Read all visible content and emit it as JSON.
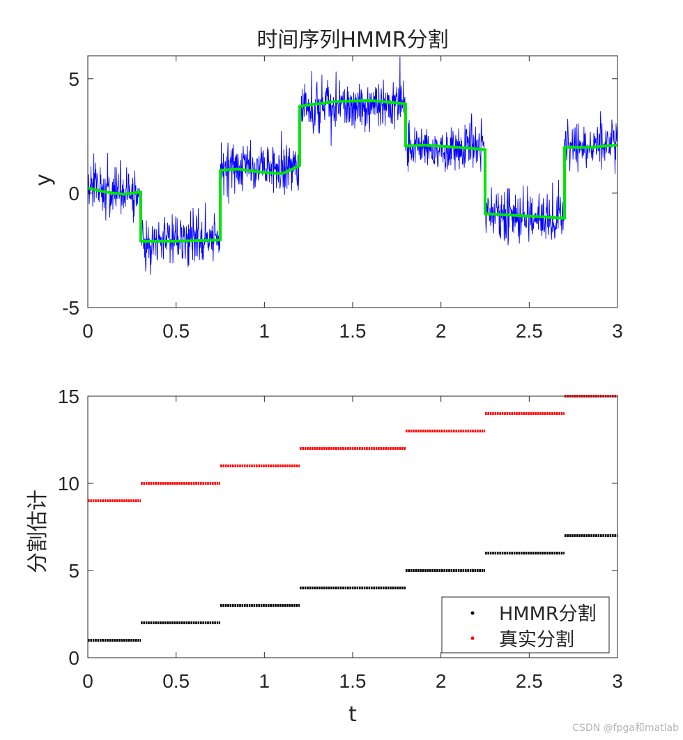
{
  "watermark": "CSDN @fpga和matlab",
  "chart_data": [
    {
      "type": "line",
      "title": "时间序列HMMR分割",
      "xlabel": "",
      "ylabel": "y",
      "xlim": [
        0,
        3
      ],
      "ylim": [
        -5,
        6
      ],
      "xticks": [
        0,
        0.5,
        1,
        1.5,
        2,
        2.5,
        3
      ],
      "xtick_labels": [
        "0",
        "0.5",
        "1",
        "1.5",
        "2",
        "2.5",
        "3"
      ],
      "yticks": [
        -5,
        0,
        5
      ],
      "ytick_labels": [
        "-5",
        "0",
        "5"
      ],
      "grid": false,
      "series": [
        {
          "name": "",
          "color": "#0000ff",
          "style": "noisy-raw",
          "noise_std": 0.55,
          "segments": [
            {
              "x": [
                0,
                0.3
              ],
              "y": [
                0.25,
                0.0
              ]
            },
            {
              "x": [
                0.3,
                0.75
              ],
              "y": [
                -2.1,
                -2.05
              ]
            },
            {
              "x": [
                0.75,
                1.2
              ],
              "y": [
                1.0,
                1.2
              ]
            },
            {
              "x": [
                1.2,
                1.8
              ],
              "y": [
                3.8,
                3.9
              ]
            },
            {
              "x": [
                1.8,
                2.25
              ],
              "y": [
                2.0,
                1.9
              ]
            },
            {
              "x": [
                2.25,
                2.7
              ],
              "y": [
                -0.9,
                -1.1
              ]
            },
            {
              "x": [
                2.7,
                3.0
              ],
              "y": [
                2.0,
                2.1
              ]
            }
          ]
        },
        {
          "name": "",
          "color": "#00e600",
          "style": "smooth-fit",
          "segments": [
            {
              "x": [
                0,
                0.1,
                0.2,
                0.3
              ],
              "y": [
                0.22,
                0.05,
                -0.05,
                0.05
              ]
            },
            {
              "x": [
                0.3,
                0.5,
                0.75
              ],
              "y": [
                -2.1,
                -2.1,
                -2.05
              ]
            },
            {
              "x": [
                0.75,
                0.85,
                1.0,
                1.1,
                1.2
              ],
              "y": [
                1.0,
                1.05,
                0.9,
                0.85,
                1.2
              ]
            },
            {
              "x": [
                1.2,
                1.4,
                1.6,
                1.8
              ],
              "y": [
                3.8,
                4.0,
                4.05,
                3.9
              ]
            },
            {
              "x": [
                1.8,
                1.9,
                2.1,
                2.25
              ],
              "y": [
                2.05,
                2.1,
                2.0,
                1.9
              ]
            },
            {
              "x": [
                2.25,
                2.5,
                2.7
              ],
              "y": [
                -0.9,
                -1.0,
                -1.1
              ]
            },
            {
              "x": [
                2.7,
                2.85,
                3.0
              ],
              "y": [
                2.0,
                2.0,
                2.1
              ]
            }
          ]
        }
      ]
    },
    {
      "type": "scatter",
      "title": "",
      "xlabel": "t",
      "ylabel": "分割估计",
      "xlim": [
        0,
        3
      ],
      "ylim": [
        0,
        15
      ],
      "xticks": [
        0,
        0.5,
        1,
        1.5,
        2,
        2.5,
        3
      ],
      "xtick_labels": [
        "0",
        "0.5",
        "1",
        "1.5",
        "2",
        "2.5",
        "3"
      ],
      "yticks": [
        0,
        5,
        10,
        15
      ],
      "ytick_labels": [
        "0",
        "5",
        "10",
        "15"
      ],
      "grid": false,
      "legend_position": "bottom-right",
      "series": [
        {
          "name": "HMMR分割",
          "color": "#000000",
          "steps": [
            {
              "x": [
                0,
                0.3
              ],
              "y": 1
            },
            {
              "x": [
                0.3,
                0.75
              ],
              "y": 2
            },
            {
              "x": [
                0.75,
                1.2
              ],
              "y": 3
            },
            {
              "x": [
                1.2,
                1.8
              ],
              "y": 4
            },
            {
              "x": [
                1.8,
                2.25
              ],
              "y": 5
            },
            {
              "x": [
                2.25,
                2.7
              ],
              "y": 6
            },
            {
              "x": [
                2.7,
                3.0
              ],
              "y": 7
            }
          ]
        },
        {
          "name": "真实分割",
          "color": "#ff0000",
          "steps": [
            {
              "x": [
                0,
                0.3
              ],
              "y": 9
            },
            {
              "x": [
                0.3,
                0.75
              ],
              "y": 10
            },
            {
              "x": [
                0.75,
                1.2
              ],
              "y": 11
            },
            {
              "x": [
                1.2,
                1.8
              ],
              "y": 12
            },
            {
              "x": [
                1.8,
                2.25
              ],
              "y": 13
            },
            {
              "x": [
                2.25,
                2.7
              ],
              "y": 14
            },
            {
              "x": [
                2.7,
                3.0
              ],
              "y": 15
            }
          ]
        }
      ]
    }
  ]
}
